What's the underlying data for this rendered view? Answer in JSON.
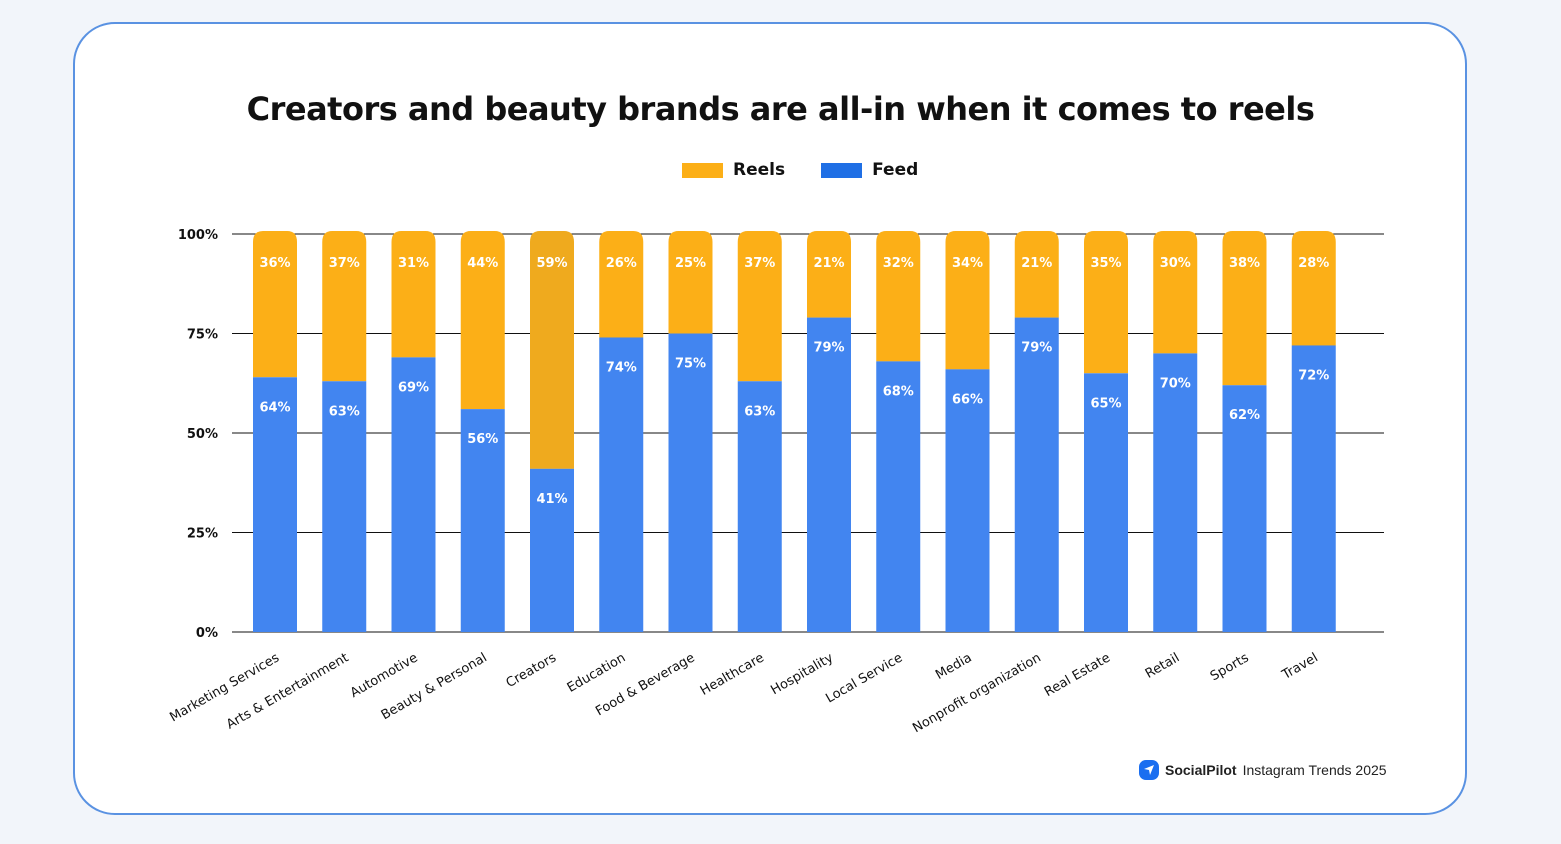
{
  "chart_data": {
    "type": "bar",
    "stacked": true,
    "title": "Creators and beauty brands are all-in when it comes to reels",
    "legend_position": "top",
    "ylim": [
      0,
      100
    ],
    "yticks": [
      "0%",
      "25%",
      "50%",
      "75%",
      "100%"
    ],
    "grid": true,
    "categories": [
      "Marketing Services",
      "Arts & Entertainment",
      "Automotive",
      "Beauty & Personal",
      "Creators",
      "Education",
      "Food & Beverage",
      "Healthcare",
      "Hospitality",
      "Local Service",
      "Media",
      "Nonprofit organization",
      "Real Estate",
      "Retail",
      "Sports",
      "Travel"
    ],
    "series": [
      {
        "name": "Feed",
        "color": "#4285f0",
        "values": [
          64,
          63,
          69,
          56,
          41,
          74,
          75,
          63,
          79,
          68,
          66,
          79,
          65,
          70,
          62,
          72
        ]
      },
      {
        "name": "Reels",
        "color": "#fcaf17",
        "values": [
          36,
          37,
          31,
          44,
          59,
          26,
          25,
          37,
          21,
          32,
          34,
          21,
          35,
          30,
          38,
          28
        ]
      }
    ],
    "highlight": {
      "category": "Creators",
      "color": "#efaa1e"
    }
  },
  "footer": {
    "brand": "SocialPilot",
    "text": "Instagram Trends 2025",
    "icon": "paper-plane-icon",
    "brand_color": "#1a6ef0"
  }
}
